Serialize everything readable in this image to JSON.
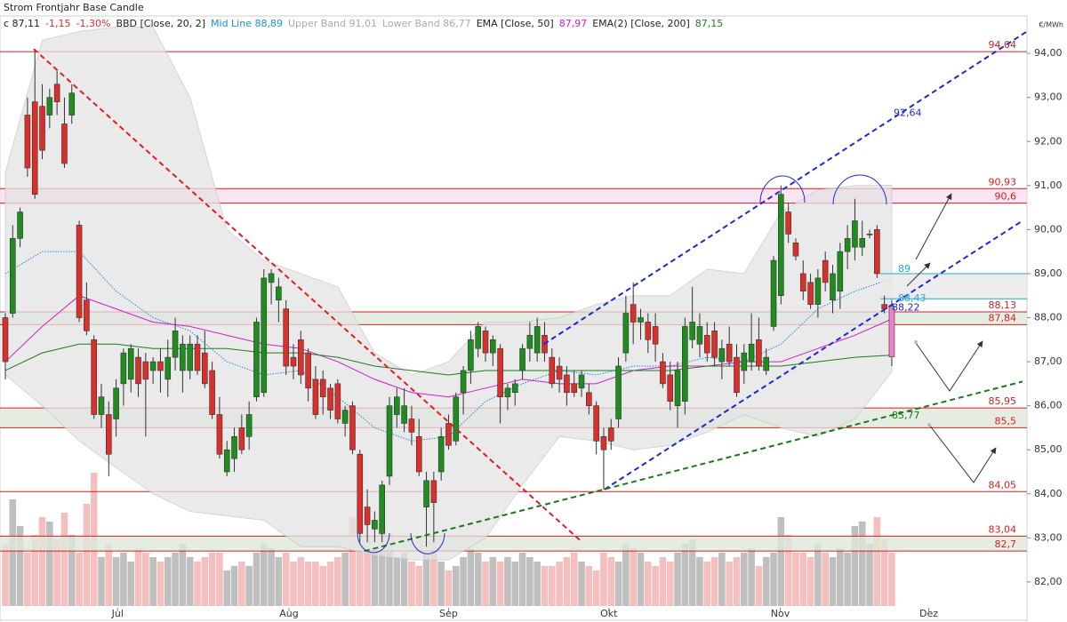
{
  "chart_data": {
    "type": "candlestick",
    "title": "Strom Frontjahr Base Candle",
    "header": [
      {
        "text": "c 87,11",
        "color": "#222222"
      },
      {
        "text": "-1,15",
        "color": "#d9302c"
      },
      {
        "text": "-1,30%",
        "color": "#d9302c"
      },
      {
        "text": "BBD [Close, 20, 2]",
        "color": "#222222"
      },
      {
        "text": "Mid Line 88,89",
        "color": "#1e90d8"
      },
      {
        "text": "Upper Band 91,01",
        "color": "#aaaaaa"
      },
      {
        "text": "Lower Band 86,77",
        "color": "#aaaaaa"
      },
      {
        "text": "EMA [Close, 50]",
        "color": "#222222"
      },
      {
        "text": "87,97",
        "color": "#d21ecb"
      },
      {
        "text": "EMA(2) [Close, 200]",
        "color": "#222222"
      },
      {
        "text": "87,15",
        "color": "#1f7a1f"
      }
    ],
    "y_unit": "€/MWh",
    "ylim": [
      81.13,
      94.85
    ],
    "yticks": [
      {
        "value": 82,
        "label": "82,00"
      },
      {
        "value": 83,
        "label": "83,00"
      },
      {
        "value": 84,
        "label": "84,00"
      },
      {
        "value": 85,
        "label": "85,00"
      },
      {
        "value": 86,
        "label": "86,00"
      },
      {
        "value": 87,
        "label": "87,00"
      },
      {
        "value": 88,
        "label": "88,00"
      },
      {
        "value": 89,
        "label": "89,00"
      },
      {
        "value": 90,
        "label": "90,00"
      },
      {
        "value": 91,
        "label": "91,00"
      },
      {
        "value": 92,
        "label": "92,00"
      },
      {
        "value": 93,
        "label": "93,00"
      },
      {
        "value": 94,
        "label": "94,00"
      }
    ],
    "xlim": [
      -0.72,
      138.3
    ],
    "xticks": [
      {
        "value": 15.2,
        "label": "Jul"
      },
      {
        "value": 38.4,
        "label": "Aug"
      },
      {
        "value": 60.0,
        "label": "Sep"
      },
      {
        "value": 81.7,
        "label": "Okt"
      },
      {
        "value": 104.9,
        "label": "Nov"
      },
      {
        "value": 125.0,
        "label": "Dez"
      }
    ],
    "up_color": "#1f8c1f",
    "down_color": "#d9302c",
    "last_color": "#f07fc8",
    "volume_up_color": "#b8b8b8",
    "volume_down_color": "#f2b8b8",
    "candles": [
      [
        88.0,
        88.1,
        86.6,
        87.0
      ],
      [
        88.1,
        90.1,
        88.0,
        89.8
      ],
      [
        89.8,
        90.5,
        89.6,
        90.4
      ],
      [
        92.6,
        93.0,
        91.2,
        91.4
      ],
      [
        92.9,
        94.1,
        90.7,
        90.8
      ],
      [
        92.8,
        93.3,
        91.6,
        91.8
      ],
      [
        92.6,
        93.2,
        92.3,
        93.0
      ],
      [
        93.3,
        93.6,
        92.6,
        92.9
      ],
      [
        92.4,
        93.0,
        91.4,
        91.5
      ],
      [
        92.6,
        93.3,
        92.4,
        93.1
      ],
      [
        90.1,
        90.2,
        87.9,
        88.0
      ],
      [
        88.4,
        88.8,
        87.6,
        87.7
      ],
      [
        87.5,
        87.6,
        85.7,
        85.8
      ],
      [
        85.8,
        86.5,
        85.5,
        86.2
      ],
      [
        85.8,
        86.1,
        84.4,
        84.9
      ],
      [
        85.7,
        86.6,
        85.3,
        86.4
      ],
      [
        86.5,
        87.3,
        86.0,
        87.2
      ],
      [
        86.6,
        87.4,
        86.3,
        87.3
      ],
      [
        87.1,
        87.3,
        86.2,
        86.5
      ],
      [
        87.0,
        87.2,
        85.3,
        86.6
      ],
      [
        86.8,
        87.1,
        86.5,
        87.0
      ],
      [
        87.0,
        87.3,
        86.3,
        86.8
      ],
      [
        86.6,
        87.5,
        86.2,
        87.1
      ],
      [
        87.1,
        88.0,
        86.8,
        87.7
      ],
      [
        86.8,
        87.6,
        86.3,
        87.4
      ],
      [
        86.8,
        87.6,
        86.6,
        87.4
      ],
      [
        87.4,
        87.6,
        86.7,
        86.8
      ],
      [
        87.2,
        87.7,
        86.4,
        86.5
      ],
      [
        86.8,
        87.0,
        85.7,
        85.8
      ],
      [
        85.8,
        86.2,
        84.8,
        84.9
      ],
      [
        84.5,
        85.2,
        84.4,
        85.0
      ],
      [
        84.8,
        85.5,
        84.5,
        85.3
      ],
      [
        85.5,
        85.8,
        84.9,
        85.0
      ],
      [
        85.3,
        86.1,
        85.0,
        85.8
      ],
      [
        86.2,
        88.0,
        86.1,
        87.9
      ],
      [
        86.3,
        89.1,
        86.2,
        88.9
      ],
      [
        88.8,
        89.1,
        88.3,
        89.0
      ],
      [
        88.4,
        88.9,
        87.9,
        88.7
      ],
      [
        88.2,
        88.4,
        86.7,
        86.9
      ],
      [
        87.1,
        87.4,
        86.6,
        86.9
      ],
      [
        87.5,
        87.7,
        86.5,
        86.7
      ],
      [
        87.2,
        87.3,
        86.1,
        86.4
      ],
      [
        86.6,
        86.9,
        85.7,
        85.8
      ],
      [
        86.6,
        86.8,
        85.8,
        86.2
      ],
      [
        86.4,
        86.5,
        85.7,
        85.9
      ],
      [
        86.5,
        86.6,
        85.6,
        85.7
      ],
      [
        85.6,
        86.0,
        85.3,
        85.9
      ],
      [
        86.0,
        86.1,
        84.9,
        85.0
      ],
      [
        84.9,
        85.0,
        82.9,
        83.1
      ],
      [
        83.7,
        84.1,
        82.9,
        83.3
      ],
      [
        83.2,
        83.6,
        82.9,
        83.4
      ],
      [
        83.1,
        84.3,
        82.9,
        84.2
      ],
      [
        84.4,
        86.2,
        84.2,
        86.0
      ],
      [
        85.8,
        86.4,
        85.5,
        86.2
      ],
      [
        85.6,
        86.4,
        85.4,
        86.0
      ],
      [
        85.7,
        86.0,
        85.1,
        85.4
      ],
      [
        85.3,
        85.7,
        84.4,
        84.5
      ],
      [
        83.7,
        84.5,
        82.8,
        84.3
      ],
      [
        84.3,
        84.5,
        82.9,
        83.8
      ],
      [
        84.5,
        85.5,
        84.3,
        85.3
      ],
      [
        85.6,
        85.8,
        85.0,
        85.1
      ],
      [
        85.2,
        86.3,
        85.1,
        86.2
      ],
      [
        86.3,
        86.9,
        85.8,
        86.8
      ],
      [
        86.8,
        87.7,
        86.5,
        87.5
      ],
      [
        87.3,
        87.9,
        87.1,
        87.8
      ],
      [
        87.7,
        87.8,
        87.0,
        87.2
      ],
      [
        87.2,
        87.6,
        86.9,
        87.5
      ],
      [
        87.3,
        87.4,
        85.6,
        86.2
      ],
      [
        86.2,
        86.5,
        85.9,
        86.4
      ],
      [
        86.3,
        86.6,
        86.0,
        86.5
      ],
      [
        86.8,
        87.4,
        86.6,
        87.3
      ],
      [
        87.3,
        87.9,
        87.0,
        87.6
      ],
      [
        87.2,
        88.0,
        87.0,
        87.8
      ],
      [
        87.6,
        87.9,
        87.0,
        87.2
      ],
      [
        87.1,
        87.3,
        86.4,
        86.5
      ],
      [
        86.9,
        87.1,
        86.3,
        86.6
      ],
      [
        86.7,
        86.9,
        86.0,
        86.3
      ],
      [
        86.5,
        86.8,
        86.2,
        86.3
      ],
      [
        86.4,
        86.8,
        86.2,
        86.7
      ],
      [
        86.3,
        86.5,
        85.8,
        86.0
      ],
      [
        86.0,
        86.1,
        84.9,
        85.2
      ],
      [
        85.3,
        85.5,
        84.1,
        85.0
      ],
      [
        85.5,
        85.7,
        85.0,
        85.2
      ],
      [
        85.7,
        87.1,
        85.5,
        86.9
      ],
      [
        87.2,
        88.5,
        87.0,
        88.1
      ],
      [
        88.3,
        88.8,
        87.4,
        87.9
      ],
      [
        87.9,
        88.2,
        87.5,
        88.0
      ],
      [
        87.9,
        88.1,
        87.2,
        87.5
      ],
      [
        87.8,
        88.1,
        87.0,
        87.4
      ],
      [
        87.0,
        87.2,
        86.4,
        86.5
      ],
      [
        86.7,
        87.0,
        85.9,
        86.1
      ],
      [
        86.0,
        87.0,
        85.5,
        86.8
      ],
      [
        86.1,
        88.0,
        85.8,
        87.8
      ],
      [
        87.5,
        88.7,
        87.3,
        87.9
      ],
      [
        87.4,
        88.1,
        87.1,
        87.8
      ],
      [
        87.6,
        87.9,
        87.0,
        87.2
      ],
      [
        87.7,
        87.9,
        86.9,
        87.1
      ],
      [
        87.0,
        87.5,
        86.6,
        87.3
      ],
      [
        87.4,
        87.8,
        86.9,
        87.0
      ],
      [
        87.1,
        87.4,
        86.2,
        86.3
      ],
      [
        86.8,
        87.4,
        86.5,
        87.2
      ],
      [
        87.0,
        88.1,
        86.8,
        87.4
      ],
      [
        87.5,
        88.0,
        86.8,
        86.9
      ],
      [
        86.8,
        87.3,
        86.7,
        87.1
      ],
      [
        87.8,
        89.4,
        87.7,
        89.3
      ],
      [
        88.5,
        91.0,
        88.3,
        90.8
      ],
      [
        90.4,
        90.6,
        89.7,
        89.9
      ],
      [
        89.7,
        89.8,
        89.3,
        89.4
      ],
      [
        89.0,
        89.3,
        88.4,
        88.6
      ],
      [
        88.8,
        89.0,
        88.2,
        88.3
      ],
      [
        88.3,
        89.1,
        88.0,
        88.9
      ],
      [
        89.3,
        89.5,
        88.6,
        88.8
      ],
      [
        88.4,
        89.2,
        88.1,
        89.0
      ],
      [
        88.6,
        89.7,
        88.2,
        89.5
      ],
      [
        89.5,
        90.1,
        89.1,
        89.8
      ],
      [
        89.6,
        90.7,
        89.3,
        90.2
      ],
      [
        89.6,
        90.2,
        89.4,
        89.8
      ],
      [
        89.9,
        90.0,
        89.8,
        89.9
      ],
      [
        90.0,
        90.1,
        88.9,
        89.0
      ],
      [
        88.3,
        88.5,
        88.1,
        88.2
      ],
      [
        88.26,
        88.4,
        86.9,
        87.11
      ]
    ],
    "volumes": [
      70,
      120,
      90,
      60,
      80,
      100,
      95,
      75,
      105,
      80,
      60,
      115,
      150,
      55,
      70,
      55,
      60,
      50,
      65,
      60,
      55,
      50,
      55,
      60,
      70,
      55,
      50,
      55,
      60,
      60,
      40,
      45,
      50,
      45,
      60,
      70,
      65,
      55,
      60,
      50,
      55,
      50,
      50,
      45,
      50,
      55,
      60,
      100,
      70,
      75,
      60,
      90,
      80,
      55,
      60,
      50,
      45,
      60,
      70,
      50,
      40,
      45,
      55,
      65,
      60,
      50,
      55,
      50,
      55,
      50,
      60,
      55,
      50,
      45,
      45,
      50,
      55,
      60,
      50,
      45,
      40,
      60,
      55,
      50,
      70,
      65,
      60,
      50,
      45,
      55,
      50,
      60,
      70,
      75,
      55,
      50,
      55,
      60,
      50,
      55,
      60,
      65,
      45,
      55,
      60,
      100,
      80,
      60,
      60,
      55,
      70,
      60,
      55,
      65,
      60,
      90,
      95,
      70,
      100,
      75,
      60
    ],
    "bollinger": {
      "x": [
        0,
        5,
        10,
        15,
        20,
        25,
        30,
        35,
        40,
        45,
        50,
        55,
        60,
        65,
        70,
        75,
        80,
        85,
        90,
        95,
        100,
        105,
        110,
        115,
        120
      ],
      "upper": [
        91.3,
        94.3,
        94.5,
        94.6,
        94.6,
        93.0,
        90.0,
        89.3,
        89.0,
        88.7,
        87.2,
        86.7,
        87.0,
        87.9,
        87.9,
        88.0,
        88.3,
        88.5,
        88.5,
        89.1,
        89.0,
        90.4,
        90.9,
        91.0,
        91.01
      ],
      "lower": [
        86.7,
        86.0,
        85.2,
        84.6,
        84.0,
        83.6,
        83.5,
        83.4,
        82.8,
        82.8,
        82.6,
        82.5,
        82.5,
        83.0,
        84.2,
        85.3,
        85.2,
        85.0,
        85.1,
        85.4,
        85.8,
        85.5,
        85.3,
        85.7,
        86.77
      ],
      "mid": [
        89.0,
        89.5,
        89.5,
        88.6,
        88.0,
        87.7,
        87.0,
        86.7,
        86.8,
        86.2,
        85.5,
        85.2,
        85.3,
        86.1,
        86.5,
        86.8,
        86.7,
        86.9,
        86.9,
        87.1,
        87.0,
        87.4,
        88.2,
        88.6,
        88.89
      ],
      "band_color": "#e4e4e4",
      "mid_color": "#1e90d8"
    },
    "ema": [
      {
        "color": "#d21ecb",
        "x": [
          0,
          5,
          10,
          15,
          20,
          25,
          30,
          35,
          40,
          45,
          50,
          55,
          60,
          65,
          70,
          75,
          80,
          85,
          90,
          95,
          100,
          105,
          110,
          115,
          120
        ],
        "values": [
          87.0,
          87.8,
          88.5,
          88.2,
          87.9,
          87.8,
          87.6,
          87.4,
          87.3,
          87.0,
          86.6,
          86.3,
          86.2,
          86.4,
          86.6,
          86.5,
          86.5,
          86.8,
          86.9,
          86.9,
          87.0,
          87.0,
          87.3,
          87.6,
          87.97
        ]
      },
      {
        "color": "#1f7a1f",
        "x": [
          0,
          5,
          10,
          15,
          20,
          25,
          30,
          35,
          40,
          45,
          50,
          55,
          60,
          65,
          70,
          75,
          80,
          85,
          90,
          95,
          100,
          105,
          110,
          115,
          120
        ],
        "values": [
          86.8,
          87.2,
          87.4,
          87.4,
          87.3,
          87.3,
          87.3,
          87.2,
          87.2,
          87.1,
          86.9,
          86.8,
          86.7,
          86.8,
          86.8,
          86.8,
          86.8,
          86.8,
          86.8,
          86.9,
          86.9,
          86.9,
          87.0,
          87.1,
          87.15
        ]
      }
    ],
    "levels": [
      {
        "value": 94.04,
        "label": "94,04"
      },
      {
        "value": 84.05,
        "label": "84,05"
      }
    ],
    "zones": [
      {
        "top": {
          "value": 90.93,
          "label": "90,93"
        },
        "bottom": {
          "value": 90.6,
          "label": "90,6"
        },
        "color": "#f9dcef"
      },
      {
        "top": {
          "value": 88.13,
          "label": "88,13"
        },
        "bottom": {
          "value": 87.84,
          "label": "87,84"
        },
        "color": "#dfe9dc"
      },
      {
        "top": {
          "value": 85.95,
          "label": "85,95"
        },
        "bottom": {
          "value": 85.5,
          "label": "85,5"
        },
        "color": "#dfe9dc"
      },
      {
        "top": {
          "value": 83.04,
          "label": "83,04"
        },
        "bottom": {
          "value": 82.7,
          "label": "82,7"
        },
        "color": "#dfe9dc"
      }
    ],
    "level_color": "#d02020",
    "trendlines": [
      {
        "color": "#e02020",
        "x": [
          3.85,
          78.1
        ],
        "y": [
          94.1,
          82.9
        ]
      },
      {
        "color": "#1a2bd0",
        "x": [
          72.9,
          138.3
        ],
        "y": [
          87.4,
          94.5
        ]
      },
      {
        "color": "#1a2bd0",
        "x": [
          81.1,
          137.7
        ],
        "y": [
          84.1,
          90.2
        ]
      },
      {
        "color": "#1a7a1a",
        "x": [
          48.6,
          137.7
        ],
        "y": [
          82.7,
          86.55
        ]
      }
    ],
    "annotations": [
      {
        "label": "92,64",
        "value": 92.64,
        "color": "#1a2bd0"
      },
      {
        "label": "89",
        "value": 89,
        "color": "#22a8d8"
      },
      {
        "label": "88,43",
        "value": 88.43,
        "color": "#22a8d8"
      },
      {
        "label": "88,22",
        "value": 88.22,
        "color": "#1a2bd0"
      },
      {
        "label": "85,77",
        "value": 85.77,
        "color": "#1a7a1a"
      }
    ]
  }
}
